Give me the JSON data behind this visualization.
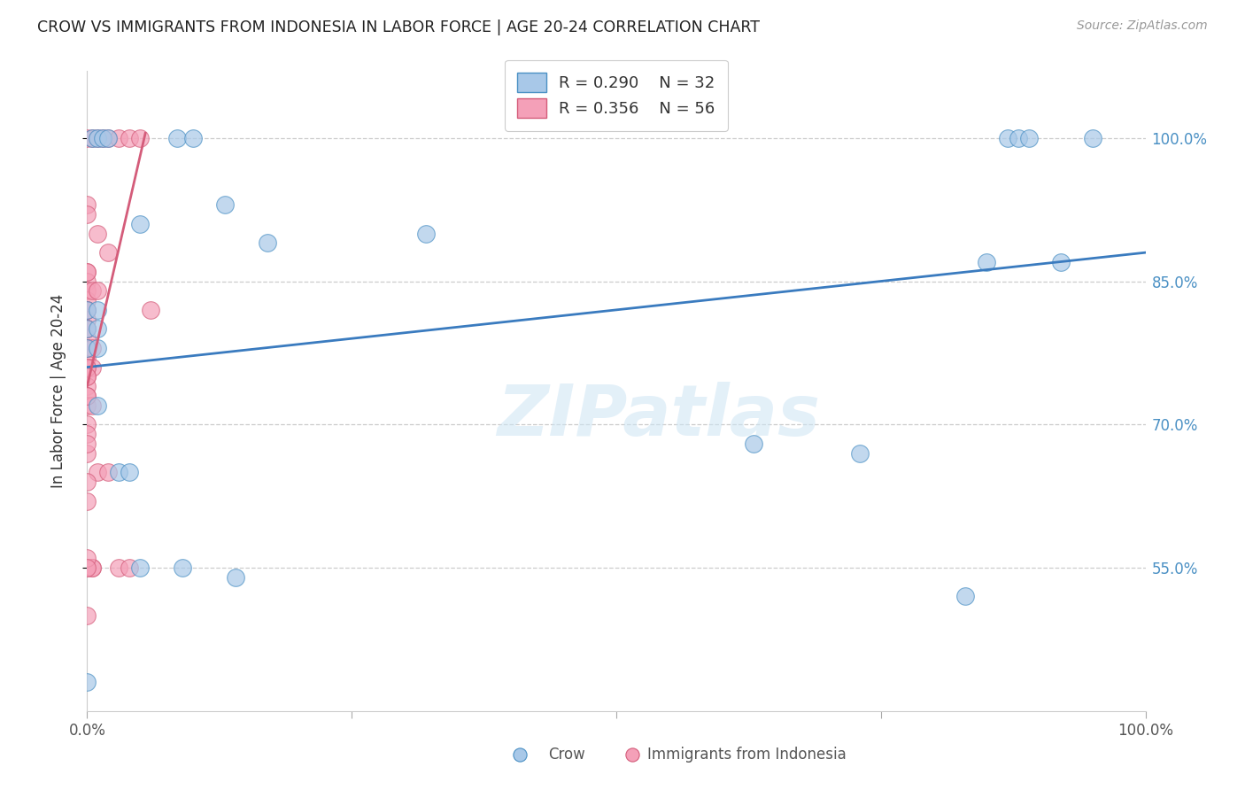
{
  "title": "CROW VS IMMIGRANTS FROM INDONESIA IN LABOR FORCE | AGE 20-24 CORRELATION CHART",
  "source": "Source: ZipAtlas.com",
  "ylabel": "In Labor Force | Age 20-24",
  "xlim": [
    0.0,
    1.0
  ],
  "ylim": [
    0.4,
    1.07
  ],
  "yticks": [
    0.55,
    0.7,
    0.85,
    1.0
  ],
  "ytick_labels": [
    "55.0%",
    "70.0%",
    "85.0%",
    "100.0%"
  ],
  "xtick_labels": [
    "0.0%",
    "100.0%"
  ],
  "blue_color": "#a8c8e8",
  "pink_color": "#f4a0b8",
  "blue_edge_color": "#4a90c4",
  "pink_edge_color": "#d45c7a",
  "blue_line_color": "#3a7bbf",
  "pink_line_color": "#d45c7a",
  "blue_label_color": "#4a90c4",
  "pink_label_color": "#d45c7a",
  "legend_blue_R": "R = 0.290",
  "legend_blue_N": "N = 32",
  "legend_pink_R": "R = 0.356",
  "legend_pink_N": "N = 56",
  "watermark": "ZIPatlas",
  "blue_dots": [
    [
      0.005,
      1.0
    ],
    [
      0.01,
      1.0
    ],
    [
      0.015,
      1.0
    ],
    [
      0.02,
      1.0
    ],
    [
      0.085,
      1.0
    ],
    [
      0.1,
      1.0
    ],
    [
      0.87,
      1.0
    ],
    [
      0.88,
      1.0
    ],
    [
      0.89,
      1.0
    ],
    [
      0.95,
      1.0
    ],
    [
      0.05,
      0.91
    ],
    [
      0.13,
      0.93
    ],
    [
      0.17,
      0.89
    ],
    [
      0.32,
      0.9
    ],
    [
      0.0,
      0.82
    ],
    [
      0.01,
      0.82
    ],
    [
      0.0,
      0.8
    ],
    [
      0.01,
      0.8
    ],
    [
      0.0,
      0.78
    ],
    [
      0.01,
      0.78
    ],
    [
      0.01,
      0.72
    ],
    [
      0.03,
      0.65
    ],
    [
      0.04,
      0.65
    ],
    [
      0.85,
      0.87
    ],
    [
      0.92,
      0.87
    ],
    [
      0.63,
      0.68
    ],
    [
      0.73,
      0.67
    ],
    [
      0.05,
      0.55
    ],
    [
      0.09,
      0.55
    ],
    [
      0.14,
      0.54
    ],
    [
      0.83,
      0.52
    ],
    [
      0.0,
      0.43
    ]
  ],
  "pink_dots": [
    [
      0.0,
      1.0
    ],
    [
      0.005,
      1.0
    ],
    [
      0.01,
      1.0
    ],
    [
      0.015,
      1.0
    ],
    [
      0.02,
      1.0
    ],
    [
      0.03,
      1.0
    ],
    [
      0.04,
      1.0
    ],
    [
      0.05,
      1.0
    ],
    [
      0.0,
      0.93
    ],
    [
      0.0,
      0.86
    ],
    [
      0.0,
      0.85
    ],
    [
      0.0,
      0.84
    ],
    [
      0.0,
      0.83
    ],
    [
      0.0,
      0.82
    ],
    [
      0.0,
      0.81
    ],
    [
      0.0,
      0.8
    ],
    [
      0.0,
      0.79
    ],
    [
      0.0,
      0.78
    ],
    [
      0.0,
      0.77
    ],
    [
      0.0,
      0.76
    ],
    [
      0.005,
      0.76
    ],
    [
      0.0,
      0.75
    ],
    [
      0.0,
      0.74
    ],
    [
      0.0,
      0.73
    ],
    [
      0.0,
      0.72
    ],
    [
      0.005,
      0.72
    ],
    [
      0.0,
      0.7
    ],
    [
      0.0,
      0.69
    ],
    [
      0.0,
      0.67
    ],
    [
      0.01,
      0.65
    ],
    [
      0.02,
      0.65
    ],
    [
      0.0,
      0.55
    ],
    [
      0.005,
      0.55
    ],
    [
      0.03,
      0.55
    ],
    [
      0.04,
      0.55
    ],
    [
      0.0,
      0.5
    ],
    [
      0.06,
      0.82
    ],
    [
      0.0,
      0.92
    ],
    [
      0.005,
      0.84
    ],
    [
      0.0,
      0.78
    ],
    [
      0.0,
      0.62
    ],
    [
      0.005,
      0.55
    ],
    [
      0.0,
      0.56
    ],
    [
      0.01,
      0.84
    ],
    [
      0.0,
      0.64
    ],
    [
      0.02,
      0.88
    ],
    [
      0.0,
      0.86
    ],
    [
      0.0,
      0.76
    ],
    [
      0.0,
      0.55
    ],
    [
      0.0,
      0.8
    ],
    [
      0.0,
      0.82
    ],
    [
      0.005,
      0.78
    ],
    [
      0.01,
      0.9
    ],
    [
      0.0,
      0.68
    ],
    [
      0.0,
      0.75
    ],
    [
      0.0,
      0.73
    ]
  ],
  "blue_trendline": {
    "x_start": 0.0,
    "y_start": 0.76,
    "x_end": 1.0,
    "y_end": 0.88
  },
  "pink_trendline": {
    "x_start": 0.0,
    "y_start": 0.74,
    "x_end": 0.055,
    "y_end": 1.005
  }
}
